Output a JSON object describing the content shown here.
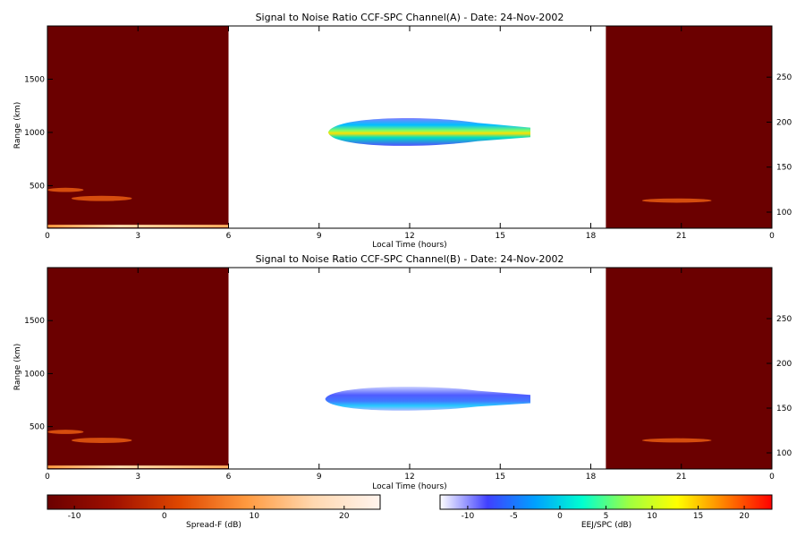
{
  "chart_data": [
    {
      "type": "heatmap",
      "title": "Signal to Noise Ratio CCF-SPC Channel(A) - Date: 24-Nov-2002",
      "xlabel": "Local Time (hours)",
      "ylabel": "Range (km)",
      "xlim": [
        0,
        24
      ],
      "ylim": [
        100,
        2000
      ],
      "xticks": [
        "0",
        "3",
        "6",
        "9",
        "12",
        "15",
        "18",
        "21",
        "0"
      ],
      "yticks": [
        "500",
        "1000",
        "1500"
      ],
      "y2ticks": [
        "100",
        "150",
        "200",
        "250"
      ],
      "night_spans": [
        [
          0,
          6
        ],
        [
          18.5,
          24
        ]
      ],
      "background_color": "#6b0000",
      "spreadf_features": [
        {
          "t0": 0.0,
          "t1": 6.0,
          "range": 120,
          "thickness": 25
        },
        {
          "t0": 0.0,
          "t1": 1.2,
          "range": 460,
          "thickness": 40
        },
        {
          "t0": 0.8,
          "t1": 2.8,
          "range": 380,
          "thickness": 50
        },
        {
          "t0": 19.7,
          "t1": 22.0,
          "range": 360,
          "thickness": 40
        }
      ],
      "eej_blob": {
        "t0": 9.3,
        "t1": 16.0,
        "range_center": 1000,
        "thickness": 150,
        "peak_t": 12.5
      }
    },
    {
      "type": "heatmap",
      "title": "Signal to Noise Ratio CCF-SPC Channel(B) - Date: 24-Nov-2002",
      "xlabel": "Local Time (hours)",
      "ylabel": "Range (km)",
      "xlim": [
        0,
        24
      ],
      "ylim": [
        100,
        2000
      ],
      "xticks": [
        "0",
        "3",
        "6",
        "9",
        "12",
        "15",
        "18",
        "21",
        "0"
      ],
      "yticks": [
        "500",
        "1000",
        "1500"
      ],
      "y2ticks": [
        "100",
        "150",
        "200",
        "250"
      ],
      "night_spans": [
        [
          0,
          6
        ],
        [
          18.5,
          24
        ]
      ],
      "background_color": "#6b0000",
      "spreadf_features": [
        {
          "t0": 0.0,
          "t1": 6.0,
          "range": 120,
          "thickness": 25
        },
        {
          "t0": 0.0,
          "t1": 1.2,
          "range": 450,
          "thickness": 40
        },
        {
          "t0": 0.8,
          "t1": 2.8,
          "range": 370,
          "thickness": 50
        },
        {
          "t0": 19.7,
          "t1": 22.0,
          "range": 370,
          "thickness": 40
        }
      ],
      "eej_blob": {
        "t0": 9.2,
        "t1": 16.0,
        "range_center": 760,
        "thickness": 130,
        "peak_t": 12.5
      }
    }
  ],
  "colorbars": [
    {
      "label": "Spread-F (dB)",
      "range": [
        -13,
        24
      ],
      "ticks": [
        "-10",
        "0",
        "10",
        "20"
      ],
      "colors": [
        "#6b0000",
        "#a01000",
        "#e04800",
        "#ff9a40",
        "#ffd8b0",
        "#fff4ee"
      ]
    },
    {
      "label": "EEJ/SPC (dB)",
      "range": [
        -13,
        23
      ],
      "ticks": [
        "-10",
        "-5",
        "0",
        "5",
        "10",
        "15",
        "20"
      ],
      "colors": [
        "#ffffff",
        "#4040ff",
        "#00a0ff",
        "#00ffd0",
        "#a0ff40",
        "#ffff00",
        "#ff8000",
        "#ff0000"
      ]
    }
  ]
}
